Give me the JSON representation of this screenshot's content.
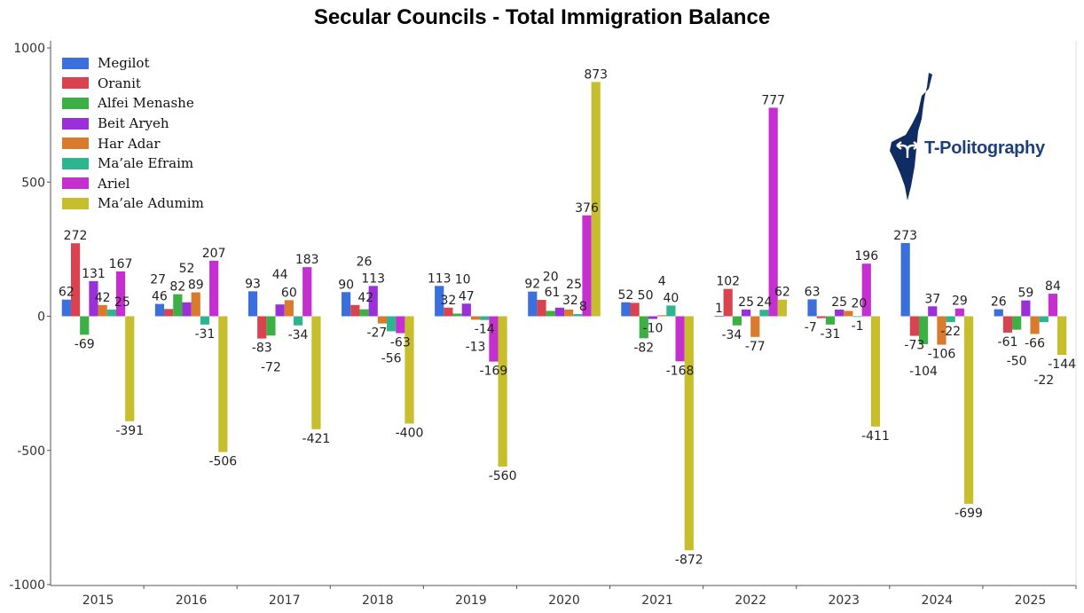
{
  "chart_data": {
    "type": "bar",
    "title": "Secular Councils - Total Immigration Balance",
    "xlabel": "",
    "ylabel": "",
    "ylim": [
      -1000,
      1000
    ],
    "yticks": [
      "1000",
      "500",
      "0",
      "-500",
      "-1000"
    ],
    "ytick_values": [
      1000,
      500,
      0,
      -500,
      -1000
    ],
    "categories": [
      "2015",
      "2016",
      "2017",
      "2018",
      "2019",
      "2020",
      "2021",
      "2022",
      "2023",
      "2024",
      "2025"
    ],
    "legend_position": "top-left",
    "series": [
      {
        "name": "Megilot",
        "color": "#3b6fdc",
        "values": [
          62,
          46,
          93,
          90,
          113,
          92,
          52,
          1,
          63,
          273,
          26
        ]
      },
      {
        "name": "Oranit",
        "color": "#d8434f",
        "values": [
          272,
          27,
          -83,
          42,
          32,
          61,
          50,
          102,
          -7,
          -73,
          -61
        ]
      },
      {
        "name": "Alfei Menashe",
        "color": "#3caf45",
        "values": [
          -69,
          82,
          -72,
          26,
          10,
          20,
          -82,
          -34,
          -31,
          -104,
          -50
        ]
      },
      {
        "name": "Beit Aryeh",
        "color": "#9a30d8",
        "values": [
          131,
          52,
          44,
          113,
          47,
          32,
          -10,
          25,
          25,
          37,
          59
        ]
      },
      {
        "name": "Har Adar",
        "color": "#d97b2c",
        "values": [
          42,
          89,
          60,
          -27,
          -13,
          25,
          4,
          -77,
          20,
          -106,
          -66
        ]
      },
      {
        "name": "Ma’ale Efraim",
        "color": "#2db592",
        "values": [
          25,
          -31,
          -34,
          -56,
          -14,
          8,
          40,
          24,
          -1,
          -22,
          -22
        ]
      },
      {
        "name": "Ariel",
        "color": "#c52fcf",
        "values": [
          167,
          207,
          183,
          -63,
          -169,
          376,
          -168,
          777,
          196,
          29,
          84
        ]
      },
      {
        "name": "Ma’ale Adumim",
        "color": "#c6be2c",
        "values": [
          -391,
          -506,
          -421,
          -400,
          -560,
          873,
          -872,
          62,
          -411,
          -699,
          -144
        ]
      }
    ]
  },
  "logo": {
    "text": "T-Politography",
    "color": "#0f2d63"
  }
}
